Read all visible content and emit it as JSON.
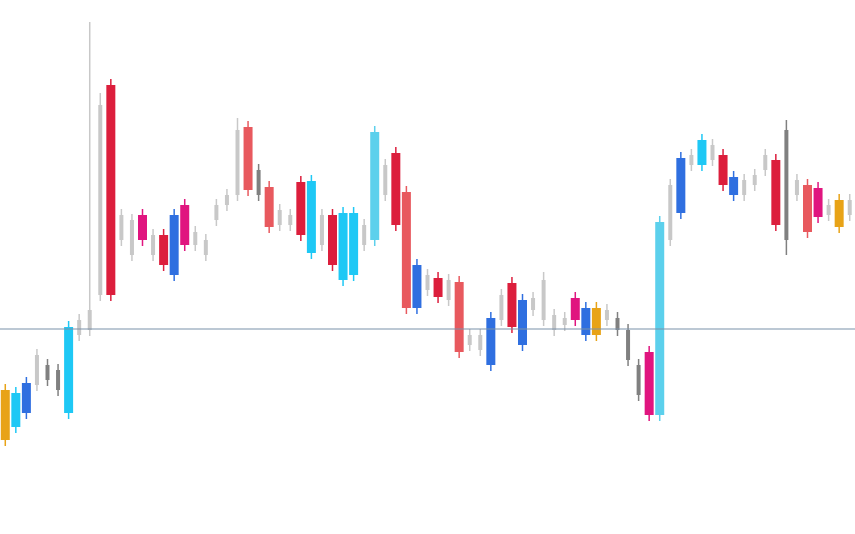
{
  "chart_data": {
    "type": "candlestick",
    "ylim": [
      0,
      534
    ],
    "hline": 205,
    "hline_color": "#7a90a8",
    "open": [
      94,
      107,
      121,
      149,
      154,
      144,
      121,
      199,
      204,
      239,
      239,
      294,
      279,
      294,
      279,
      269,
      259,
      289,
      289,
      279,
      314,
      329,
      339,
      344,
      339,
      307,
      309,
      309,
      299,
      281,
      289,
      269,
      254,
      259,
      289,
      294,
      339,
      309,
      226,
      226,
      244,
      237,
      234,
      182,
      189,
      184,
      169,
      214,
      207,
      189,
      224,
      214,
      204,
      209,
      214,
      199,
      199,
      214,
      204,
      174,
      139,
      119,
      119,
      294,
      321,
      369,
      369,
      374,
      349,
      339,
      339,
      349,
      364,
      309,
      294,
      339,
      302,
      317,
      319,
      307,
      319
    ],
    "high": [
      150,
      147,
      157,
      185,
      175,
      170,
      213,
      220,
      512,
      441,
      455,
      325,
      320,
      325,
      305,
      305,
      325,
      335,
      308,
      300,
      335,
      345,
      416,
      413,
      370,
      353,
      330,
      325,
      358,
      359,
      325,
      325,
      327,
      327,
      315,
      408,
      375,
      387,
      348,
      275,
      265,
      262,
      260,
      258,
      205,
      205,
      222,
      245,
      257,
      240,
      242,
      262,
      225,
      222,
      242,
      232,
      232,
      230,
      222,
      210,
      175,
      188,
      318,
      355,
      382,
      385,
      400,
      395,
      385,
      363,
      360,
      365,
      385,
      380,
      414,
      360,
      355,
      352,
      335,
      340,
      340
    ],
    "low": [
      88,
      101,
      115,
      143,
      148,
      138,
      115,
      193,
      198,
      233,
      233,
      288,
      273,
      288,
      273,
      263,
      253,
      283,
      283,
      273,
      308,
      323,
      333,
      338,
      333,
      301,
      303,
      303,
      293,
      275,
      283,
      263,
      248,
      253,
      283,
      288,
      333,
      303,
      220,
      220,
      238,
      231,
      228,
      176,
      183,
      178,
      163,
      208,
      201,
      183,
      218,
      208,
      198,
      203,
      208,
      193,
      193,
      208,
      198,
      168,
      133,
      113,
      113,
      288,
      315,
      363,
      363,
      368,
      343,
      333,
      333,
      343,
      358,
      303,
      279,
      333,
      296,
      311,
      313,
      301,
      313
    ],
    "close": [
      144,
      141,
      151,
      179,
      169,
      164,
      207,
      214,
      224,
      429,
      449,
      319,
      314,
      319,
      299,
      299,
      319,
      329,
      302,
      294,
      329,
      339,
      404,
      407,
      364,
      347,
      324,
      319,
      352,
      353,
      319,
      319,
      321,
      321,
      309,
      402,
      369,
      381,
      342,
      269,
      259,
      256,
      254,
      252,
      199,
      199,
      216,
      239,
      251,
      234,
      236,
      254,
      219,
      216,
      236,
      226,
      226,
      224,
      216,
      204,
      169,
      182,
      312,
      349,
      376,
      379,
      394,
      389,
      379,
      357,
      354,
      359,
      379,
      374,
      404,
      354,
      349,
      346,
      329,
      334,
      334
    ],
    "colors": [
      "#e8a317",
      "#1ec8f5",
      "#2f6fe0",
      "#c8c8c8",
      "#808080",
      "#808080",
      "#1ec8f5",
      "#c8c8c8",
      "#c8c8c8",
      "#c8c8c8",
      "#dc1e3c",
      "#c8c8c8",
      "#c8c8c8",
      "#e0157f",
      "#c8c8c8",
      "#dc1e3c",
      "#2f6fe0",
      "#e0157f",
      "#c8c8c8",
      "#c8c8c8",
      "#c8c8c8",
      "#c8c8c8",
      "#c8c8c8",
      "#e8595e",
      "#808080",
      "#e8595e",
      "#c8c8c8",
      "#c8c8c8",
      "#dc1e3c",
      "#1ec8f5",
      "#c8c8c8",
      "#dc1e3c",
      "#1ec8f5",
      "#1ec8f5",
      "#c8c8c8",
      "#5cd0ec",
      "#c8c8c8",
      "#dc1e3c",
      "#e8595e",
      "#2f6fe0",
      "#c8c8c8",
      "#dc1e3c",
      "#c8c8c8",
      "#e8595e",
      "#c8c8c8",
      "#c8c8c8",
      "#2f6fe0",
      "#c8c8c8",
      "#dc1e3c",
      "#2f6fe0",
      "#c8c8c8",
      "#c8c8c8",
      "#c8c8c8",
      "#c8c8c8",
      "#e0157f",
      "#2f6fe0",
      "#e8a317",
      "#c8c8c8",
      "#808080",
      "#808080",
      "#808080",
      "#e0157f",
      "#5cd0ec",
      "#c8c8c8",
      "#2f6fe0",
      "#c8c8c8",
      "#1ec8f5",
      "#c8c8c8",
      "#dc1e3c",
      "#2f6fe0",
      "#c8c8c8",
      "#c8c8c8",
      "#c8c8c8",
      "#dc1e3c",
      "#808080",
      "#c8c8c8",
      "#e8595e",
      "#e0157f",
      "#c8c8c8",
      "#e8a317",
      "#c8c8c8"
    ]
  }
}
